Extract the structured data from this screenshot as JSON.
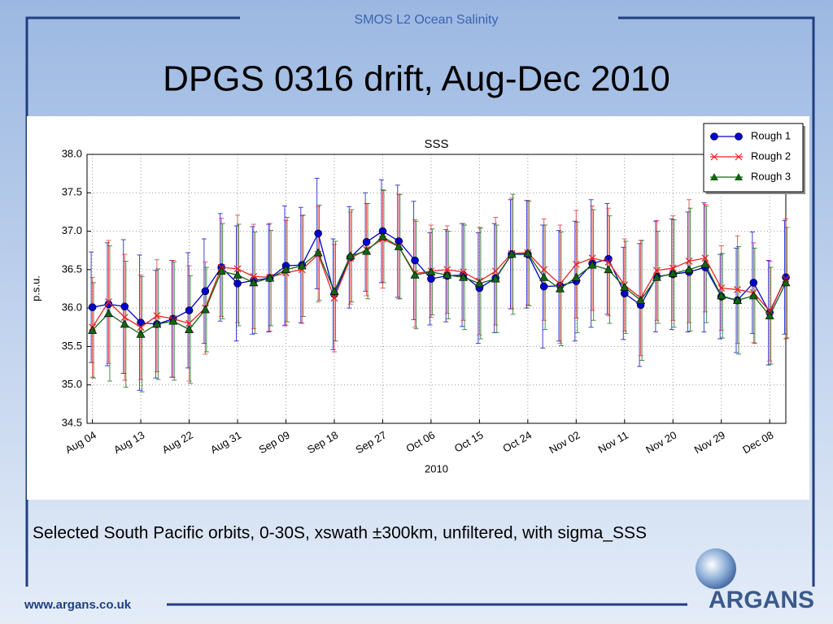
{
  "header": {
    "subtitle": "SMOS L2 Ocean Salinity",
    "title": "DPGS 0316 drift, Aug-Dec 2010"
  },
  "caption": "Selected South Pacific orbits, 0-30S, xswath ±300km, unfiltered, with sigma_SSS",
  "footer": {
    "url": "www.argans.co.uk",
    "logo": "ARGANS"
  },
  "chart_data": {
    "type": "line",
    "title": "SSS",
    "x_label": "2010",
    "y_label": "p.s.u.",
    "x": [
      "2010-08-04",
      "2010-08-07",
      "2010-08-10",
      "2010-08-13",
      "2010-08-16",
      "2010-08-19",
      "2010-08-22",
      "2010-08-25",
      "2010-08-28",
      "2010-08-31",
      "2010-09-03",
      "2010-09-06",
      "2010-09-09",
      "2010-09-12",
      "2010-09-15",
      "2010-09-18",
      "2010-09-21",
      "2010-09-24",
      "2010-09-27",
      "2010-09-30",
      "2010-10-03",
      "2010-10-06",
      "2010-10-09",
      "2010-10-12",
      "2010-10-15",
      "2010-10-18",
      "2010-10-21",
      "2010-10-24",
      "2010-10-27",
      "2010-10-30",
      "2010-11-02",
      "2010-11-05",
      "2010-11-08",
      "2010-11-11",
      "2010-11-14",
      "2010-11-17",
      "2010-11-20",
      "2010-11-23",
      "2010-11-26",
      "2010-11-29",
      "2010-12-02",
      "2010-12-05",
      "2010-12-08",
      "2010-12-11"
    ],
    "xlim": [
      "2010-08-03",
      "2010-12-11"
    ],
    "xticks": [
      {
        "value": "2010-08-04",
        "label": "Aug 04"
      },
      {
        "value": "2010-08-13",
        "label": "Aug 13"
      },
      {
        "value": "2010-08-22",
        "label": "Aug 22"
      },
      {
        "value": "2010-08-31",
        "label": "Aug 31"
      },
      {
        "value": "2010-09-09",
        "label": "Sep 09"
      },
      {
        "value": "2010-09-18",
        "label": "Sep 18"
      },
      {
        "value": "2010-09-27",
        "label": "Sep 27"
      },
      {
        "value": "2010-10-06",
        "label": "Oct 06"
      },
      {
        "value": "2010-10-15",
        "label": "Oct 15"
      },
      {
        "value": "2010-10-24",
        "label": "Oct 24"
      },
      {
        "value": "2010-11-02",
        "label": "Nov 02"
      },
      {
        "value": "2010-11-11",
        "label": "Nov 11"
      },
      {
        "value": "2010-11-20",
        "label": "Nov 20"
      },
      {
        "value": "2010-11-29",
        "label": "Nov 29"
      },
      {
        "value": "2010-12-08",
        "label": "Dec 08"
      }
    ],
    "ylim": [
      34.5,
      38.0
    ],
    "yticks": [
      {
        "value": 34.5,
        "label": "34.5"
      },
      {
        "value": 35,
        "label": "35.0"
      },
      {
        "value": 35.5,
        "label": "35.5"
      },
      {
        "value": 36,
        "label": "36.0"
      },
      {
        "value": 36.5,
        "label": "36.5"
      },
      {
        "value": 37,
        "label": "37.0"
      },
      {
        "value": 37.5,
        "label": "37.5"
      },
      {
        "value": 38,
        "label": "38.0"
      }
    ],
    "grid": true,
    "legend": "upper right",
    "series": [
      {
        "name": "Rough 1",
        "color": "#0000cc",
        "marker": "o",
        "values": [
          36.01,
          36.05,
          36.02,
          35.81,
          35.79,
          35.86,
          35.97,
          36.22,
          36.53,
          36.32,
          36.36,
          36.39,
          36.55,
          36.56,
          36.97,
          36.18,
          36.66,
          36.86,
          37.0,
          36.87,
          36.62,
          36.38,
          36.42,
          36.43,
          36.26,
          36.39,
          36.7,
          36.7,
          36.28,
          36.29,
          36.35,
          36.58,
          36.64,
          36.19,
          36.04,
          36.41,
          36.44,
          36.47,
          36.53,
          36.15,
          36.1,
          36.33,
          35.94,
          36.4
        ],
        "errors": [
          0.72,
          0.8,
          0.87,
          0.88,
          0.7,
          0.76,
          0.75,
          0.68,
          0.7,
          0.75,
          0.7,
          0.7,
          0.78,
          0.75,
          0.72,
          0.72,
          0.66,
          0.64,
          0.67,
          0.73,
          0.77,
          0.6,
          0.6,
          0.67,
          0.72,
          0.71,
          0.71,
          0.7,
          0.8,
          0.72,
          0.78,
          0.83,
          0.72,
          0.6,
          0.8,
          0.72,
          0.72,
          0.78,
          0.84,
          0.55,
          0.68,
          0.66,
          0.68,
          0.74
        ]
      },
      {
        "name": "Rough 2",
        "color": "#ee2222",
        "marker": "x",
        "values": [
          35.75,
          36.08,
          35.88,
          35.75,
          35.9,
          35.86,
          35.8,
          36.0,
          36.53,
          36.51,
          36.41,
          36.4,
          36.46,
          36.5,
          36.7,
          36.13,
          36.65,
          36.76,
          36.9,
          36.8,
          36.45,
          36.48,
          36.5,
          36.47,
          36.35,
          36.48,
          36.71,
          36.72,
          36.5,
          36.31,
          36.57,
          36.65,
          36.6,
          36.3,
          36.13,
          36.49,
          36.52,
          36.61,
          36.65,
          36.26,
          36.24,
          36.2,
          35.96,
          36.38
        ],
        "errors": [
          0.65,
          0.8,
          0.82,
          0.68,
          0.73,
          0.76,
          0.75,
          0.6,
          0.64,
          0.7,
          0.68,
          0.7,
          0.68,
          0.7,
          0.62,
          0.7,
          0.6,
          0.6,
          0.64,
          0.68,
          0.7,
          0.6,
          0.57,
          0.63,
          0.7,
          0.7,
          0.72,
          0.68,
          0.66,
          0.77,
          0.7,
          0.68,
          0.7,
          0.6,
          0.75,
          0.65,
          0.68,
          0.8,
          0.7,
          0.55,
          0.7,
          0.65,
          0.65,
          0.78
        ]
      },
      {
        "name": "Rough 3",
        "color": "#116611",
        "marker": "^",
        "values": [
          35.71,
          35.93,
          35.79,
          35.66,
          35.79,
          35.83,
          35.72,
          35.98,
          36.48,
          36.43,
          36.33,
          36.39,
          36.5,
          36.55,
          36.72,
          36.22,
          36.68,
          36.74,
          36.93,
          36.8,
          36.43,
          36.47,
          36.43,
          36.4,
          36.32,
          36.38,
          36.7,
          36.71,
          36.4,
          36.25,
          36.4,
          36.56,
          36.5,
          36.27,
          36.1,
          36.4,
          36.45,
          36.5,
          36.57,
          36.16,
          36.1,
          36.16,
          35.9,
          36.33
        ],
        "errors": [
          0.62,
          0.88,
          0.82,
          0.75,
          0.72,
          0.77,
          0.7,
          0.55,
          0.62,
          0.66,
          0.66,
          0.62,
          0.68,
          0.66,
          0.62,
          0.65,
          0.6,
          0.62,
          0.6,
          0.68,
          0.7,
          0.56,
          0.57,
          0.68,
          0.72,
          0.7,
          0.78,
          0.68,
          0.68,
          0.74,
          0.72,
          0.72,
          0.7,
          0.6,
          0.78,
          0.6,
          0.7,
          0.8,
          0.76,
          0.55,
          0.7,
          0.62,
          0.63,
          0.72
        ]
      }
    ]
  }
}
